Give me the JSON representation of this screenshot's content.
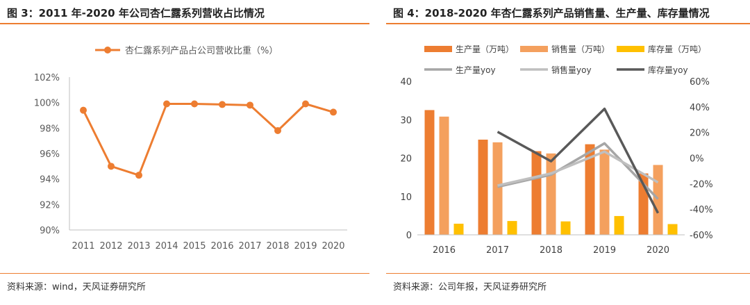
{
  "left": {
    "title": "图 3：2011 年-2020 年公司杏仁露系列营收占比情况",
    "source": "资料来源：wind，天风证券研究所"
  },
  "right": {
    "title": "图 4：2018-2020 年杏仁露系列产品销售量、生产量、库存量情况",
    "source": "资料来源：公司年报，天风证券研究所"
  },
  "colors": {
    "orange": "#ED7D31",
    "lightOrange": "#F4A05E",
    "yellow": "#FFC000",
    "gray1": "#A6A6A6",
    "gray2": "#BFBFBF",
    "gray3": "#595959"
  },
  "chart_data": [
    {
      "type": "line",
      "title": "",
      "x": [
        "2011",
        "2012",
        "2013",
        "2014",
        "2015",
        "2016",
        "2017",
        "2018",
        "2019",
        "2020"
      ],
      "series": [
        {
          "name": "杏仁露系列产品占公司营收比重（%）",
          "values": [
            99.4,
            95.0,
            94.3,
            99.9,
            99.9,
            99.85,
            99.8,
            97.8,
            99.9,
            99.25
          ]
        }
      ],
      "ylim": [
        90,
        102
      ],
      "yticks": [
        "90%",
        "92%",
        "94%",
        "96%",
        "98%",
        "100%",
        "102%"
      ],
      "legend": "top",
      "grid": false
    },
    {
      "type": "bar",
      "title": "",
      "categories": [
        "2016",
        "2017",
        "2018",
        "2019",
        "2020"
      ],
      "series": [
        {
          "name": "生产量（万吨）",
          "axis": "left",
          "values": [
            32.5,
            24.8,
            21.8,
            23.6,
            16.0
          ]
        },
        {
          "name": "销售量（万吨）",
          "axis": "left",
          "values": [
            30.8,
            24.1,
            21.2,
            22.2,
            18.2
          ]
        },
        {
          "name": "库存量（万吨）",
          "axis": "left",
          "values": [
            2.9,
            3.6,
            3.5,
            4.9,
            2.8
          ]
        }
      ],
      "line_series": [
        {
          "name": "生产量yoy",
          "axis": "right",
          "values": [
            null,
            -22.5,
            -13,
            11.5,
            -32
          ]
        },
        {
          "name": "销售量yoy",
          "axis": "right",
          "values": [
            null,
            -21.5,
            -12,
            5,
            -19
          ]
        },
        {
          "name": "库存量yoy",
          "axis": "right",
          "values": [
            null,
            20.5,
            -2.5,
            38.5,
            -43
          ]
        }
      ],
      "ylim_left": [
        0,
        40
      ],
      "yticks_left": [
        "0",
        "10",
        "20",
        "30",
        "40"
      ],
      "ylim_right": [
        -60,
        60
      ],
      "yticks_right": [
        "-60%",
        "-40%",
        "-20%",
        "0%",
        "20%",
        "40%",
        "60%"
      ],
      "legend": "top",
      "grid": false
    }
  ]
}
